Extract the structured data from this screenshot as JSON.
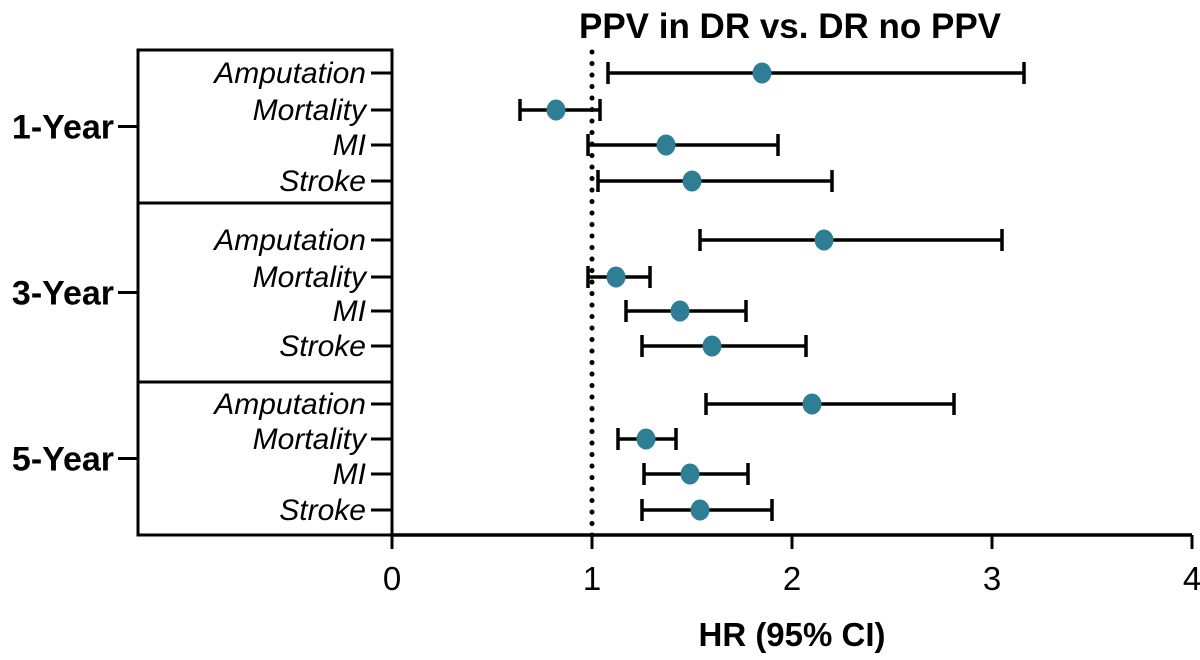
{
  "chart_data": {
    "type": "scatter",
    "subtype": "forest-plot",
    "title": "PPV in DR vs. DR no PPV",
    "xlabel": "HR (95% CI)",
    "xlim": [
      0,
      4
    ],
    "xticks": [
      0,
      1,
      2,
      3,
      4
    ],
    "reference_line_x": 1,
    "grid": false,
    "legend": "none",
    "point_color": "#2e7e95",
    "line_color": "#000000",
    "groups": [
      {
        "label": "1-Year",
        "rows": [
          {
            "label": "Amputation",
            "hr": 1.85,
            "ci_low": 1.08,
            "ci_high": 3.16
          },
          {
            "label": "Mortality",
            "hr": 0.82,
            "ci_low": 0.64,
            "ci_high": 1.04
          },
          {
            "label": "MI",
            "hr": 1.37,
            "ci_low": 0.98,
            "ci_high": 1.93
          },
          {
            "label": "Stroke",
            "hr": 1.5,
            "ci_low": 1.03,
            "ci_high": 2.2
          }
        ]
      },
      {
        "label": "3-Year",
        "rows": [
          {
            "label": "Amputation",
            "hr": 2.16,
            "ci_low": 1.54,
            "ci_high": 3.05
          },
          {
            "label": "Mortality",
            "hr": 1.12,
            "ci_low": 0.98,
            "ci_high": 1.29
          },
          {
            "label": "MI",
            "hr": 1.44,
            "ci_low": 1.17,
            "ci_high": 1.77
          },
          {
            "label": "Stroke",
            "hr": 1.6,
            "ci_low": 1.25,
            "ci_high": 2.07
          }
        ]
      },
      {
        "label": "5-Year",
        "rows": [
          {
            "label": "Amputation",
            "hr": 2.1,
            "ci_low": 1.57,
            "ci_high": 2.81
          },
          {
            "label": "Mortality",
            "hr": 1.27,
            "ci_low": 1.13,
            "ci_high": 1.42
          },
          {
            "label": "MI",
            "hr": 1.49,
            "ci_low": 1.26,
            "ci_high": 1.78
          },
          {
            "label": "Stroke",
            "hr": 1.54,
            "ci_low": 1.25,
            "ci_high": 1.9
          }
        ]
      }
    ]
  }
}
